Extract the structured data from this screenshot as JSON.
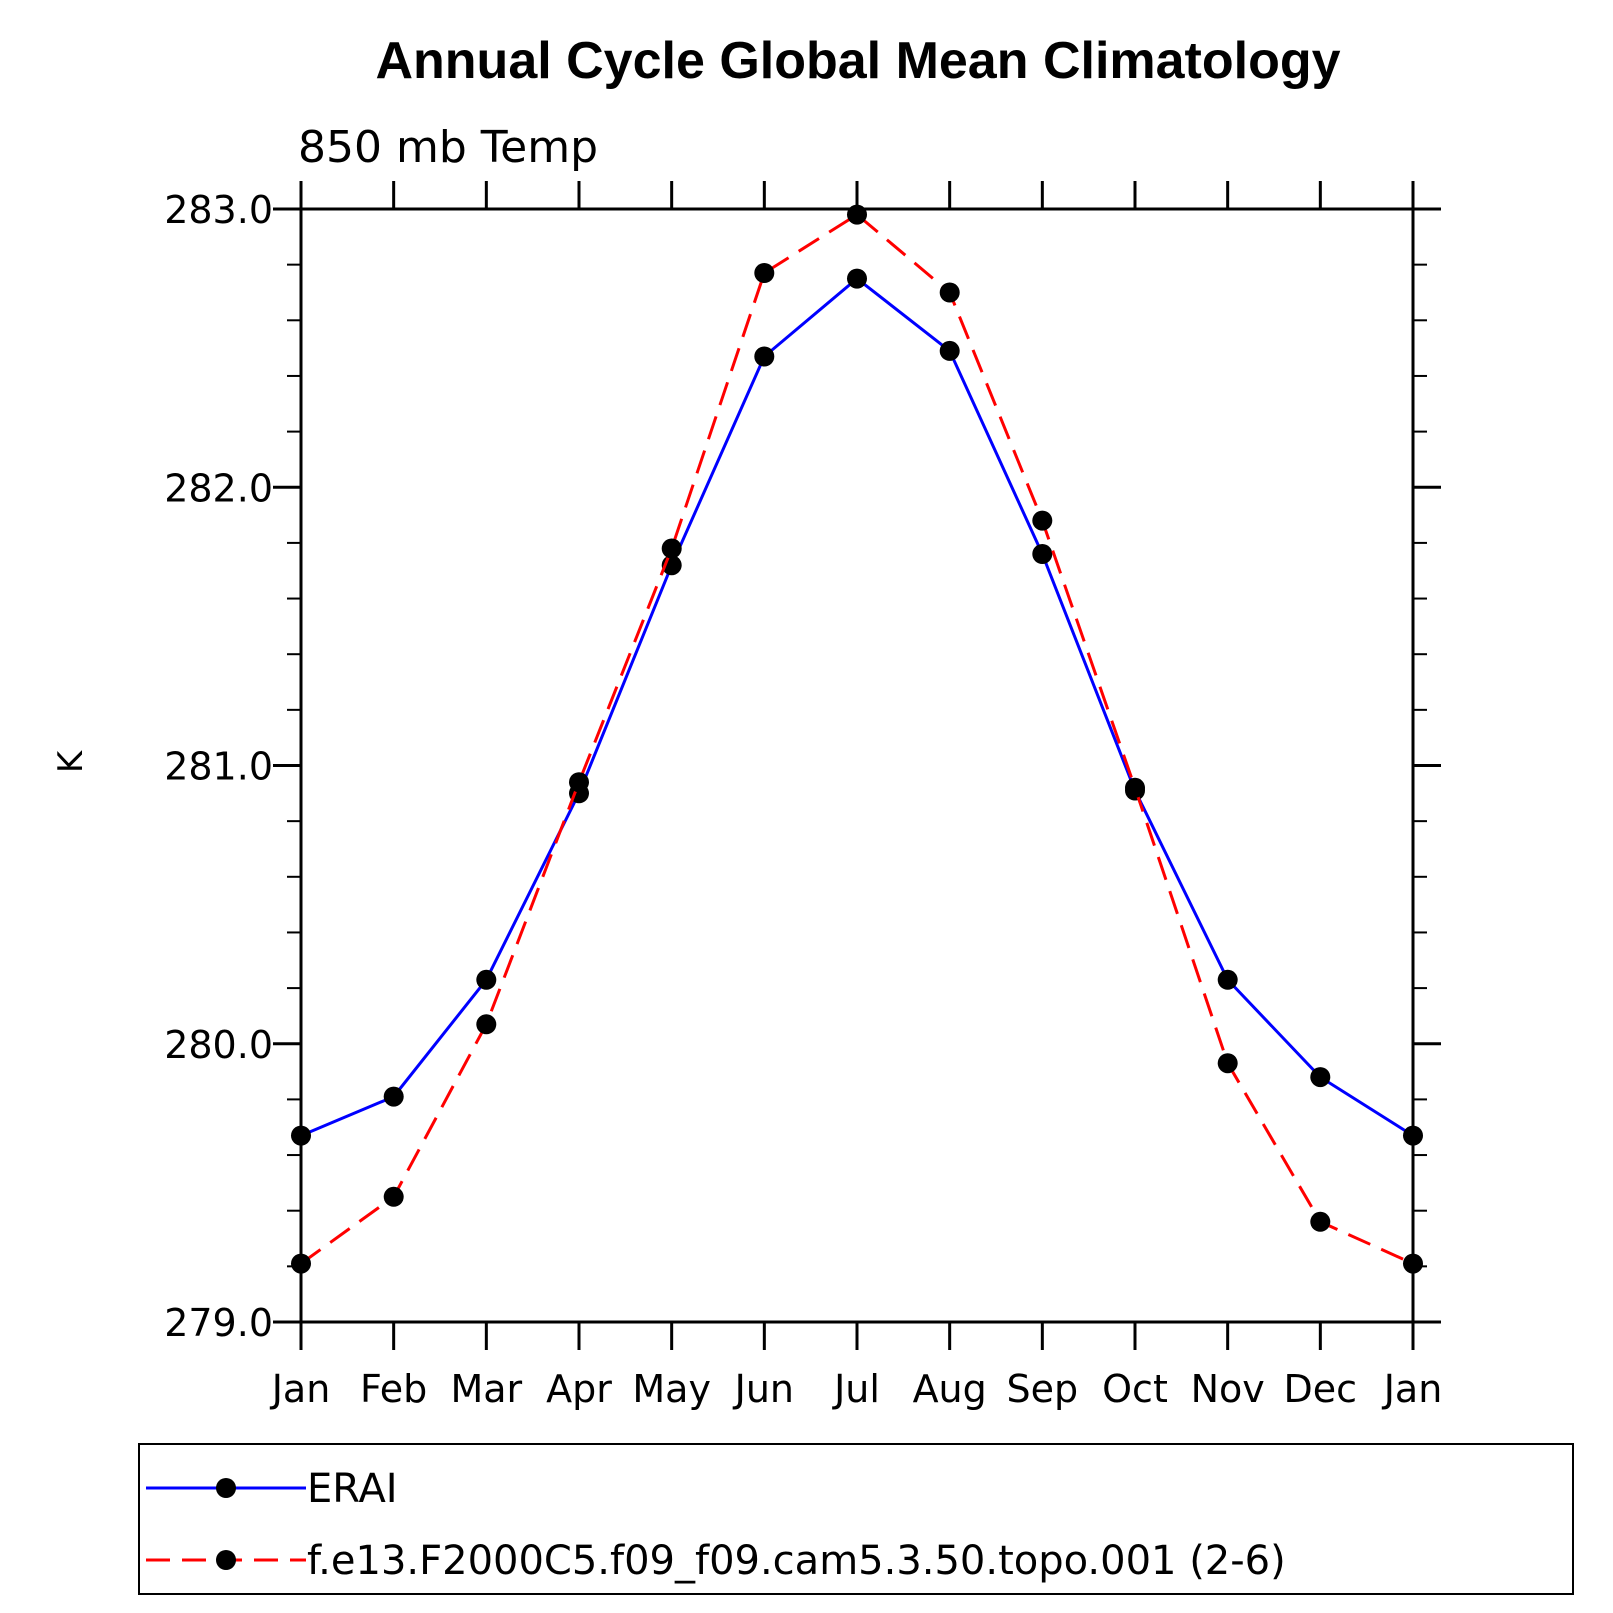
{
  "chart_data": {
    "type": "line",
    "title": "Annual Cycle Global Mean Climatology",
    "subtitle": "850 mb Temp",
    "ylabel": "K",
    "xlabel": "",
    "categories": [
      "Jan",
      "Feb",
      "Mar",
      "Apr",
      "May",
      "Jun",
      "Jul",
      "Aug",
      "Sep",
      "Oct",
      "Nov",
      "Dec",
      "Jan"
    ],
    "ylim": [
      279.0,
      283.0
    ],
    "yticks": [
      "279.0",
      "280.0",
      "281.0",
      "282.0",
      "283.0"
    ],
    "minor_tick_step": 0.2,
    "grid": false,
    "legend_position": "bottom",
    "series": [
      {
        "name": "ERAI",
        "color": "#0000ff",
        "line_style": "solid",
        "marker": "filled-circle",
        "values": [
          279.67,
          279.81,
          280.23,
          280.9,
          281.72,
          282.47,
          282.75,
          282.49,
          281.76,
          280.91,
          280.23,
          279.88,
          279.67
        ]
      },
      {
        "name": "f.e13.F2000C5.f09_f09.cam5.3.50.topo.001 (2-6)",
        "color": "#ff0000",
        "line_style": "dashed",
        "marker": "filled-circle",
        "values": [
          279.21,
          279.45,
          280.07,
          280.94,
          281.78,
          282.77,
          282.98,
          282.7,
          281.88,
          280.92,
          279.93,
          279.36,
          279.21
        ]
      }
    ]
  }
}
